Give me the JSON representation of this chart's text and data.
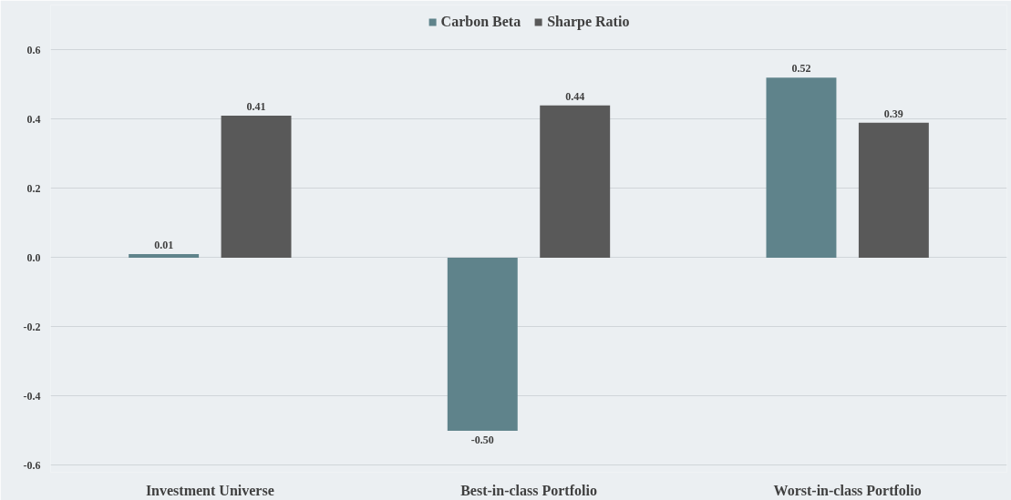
{
  "chart_data": {
    "type": "bar",
    "categories": [
      "Investment Universe",
      "Best-in-class Portfolio",
      "Worst-in-class Portfolio"
    ],
    "series": [
      {
        "name": "Carbon Beta",
        "color": "#5f838b",
        "values": [
          0.01,
          -0.5,
          0.52
        ],
        "value_labels": [
          "0.01",
          "-0.50",
          "0.52"
        ]
      },
      {
        "name": "Sharpe Ratio",
        "color": "#595959",
        "values": [
          0.41,
          0.44,
          0.39
        ],
        "value_labels": [
          "0.41",
          "0.44",
          "0.39"
        ]
      }
    ],
    "ylim": [
      -0.62,
      0.73
    ],
    "yticks": [
      {
        "value": -0.6,
        "label": "-0.6"
      },
      {
        "value": -0.4,
        "label": "-0.4"
      },
      {
        "value": -0.2,
        "label": "-0.2"
      },
      {
        "value": 0,
        "label": "0.0"
      },
      {
        "value": 0.2,
        "label": "0.2"
      },
      {
        "value": 0.4,
        "label": "0.4"
      },
      {
        "value": 0.6,
        "label": "0.6"
      }
    ],
    "grid": "y",
    "legend": "top"
  }
}
